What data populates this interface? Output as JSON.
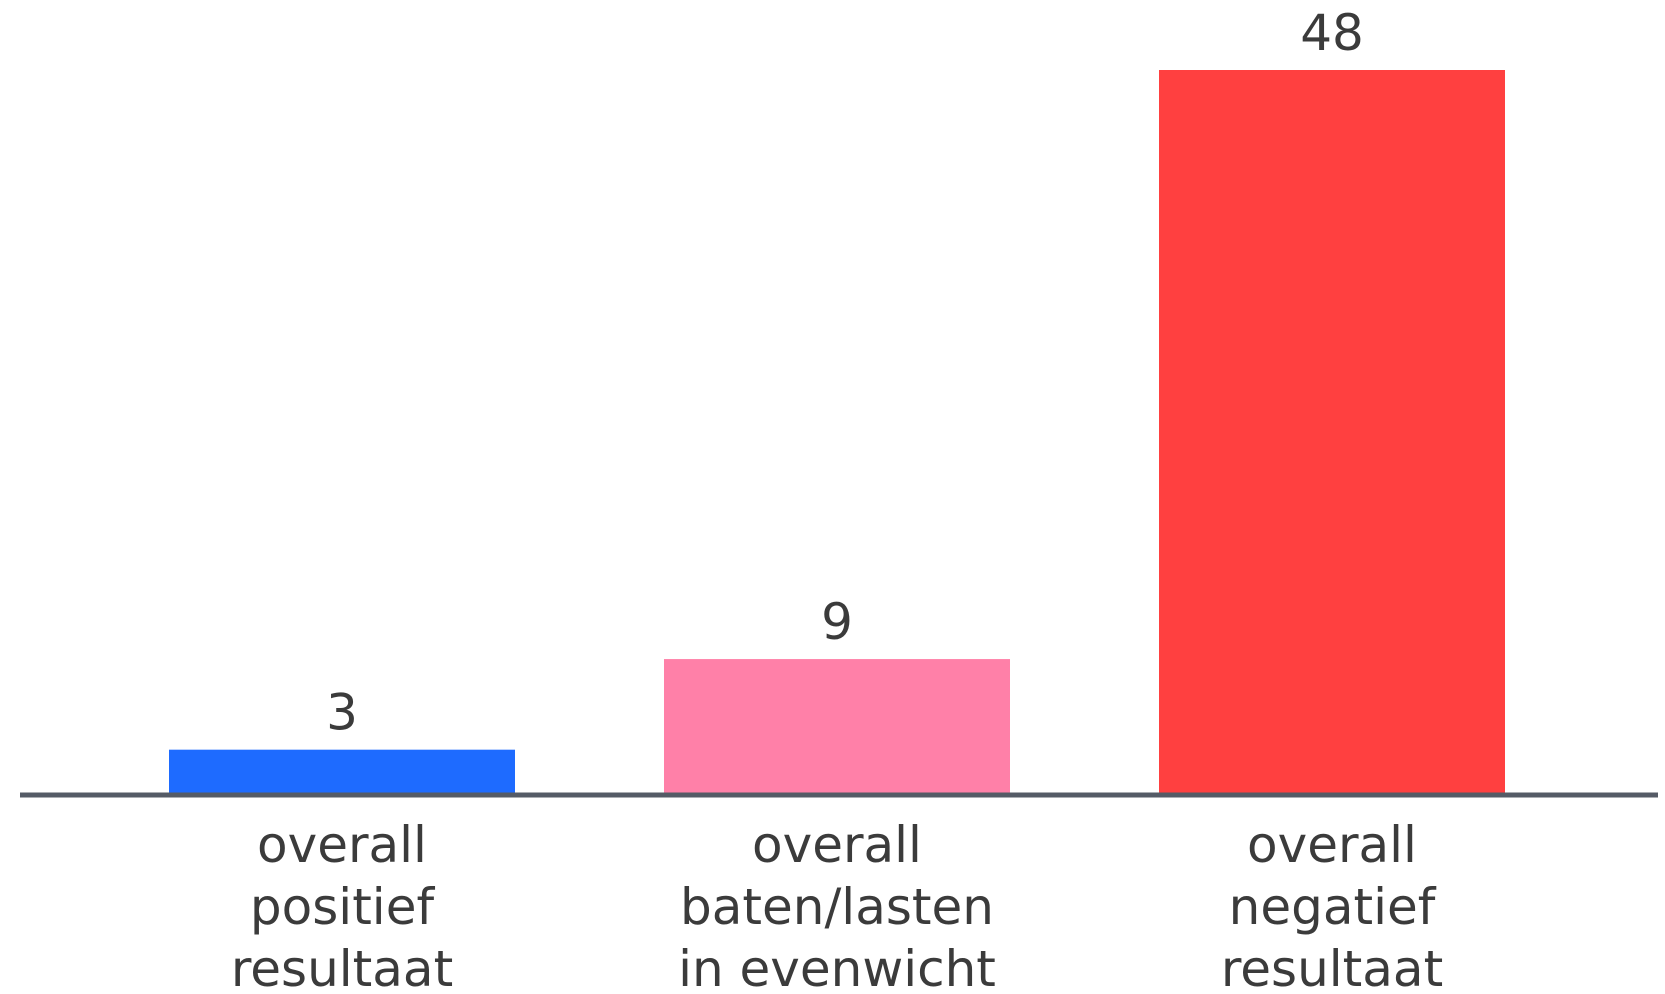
{
  "chart_data": {
    "type": "bar",
    "categories": [
      [
        "overall",
        "positief",
        "resultaat"
      ],
      [
        "overall",
        "baten/lasten",
        "in evenwicht"
      ],
      [
        "overall",
        "negatief",
        "resultaat"
      ]
    ],
    "values": [
      3,
      9,
      48
    ],
    "colors": [
      "#1e6bff",
      "#ff80a8",
      "#ff4040"
    ],
    "axis_color": "#555b66",
    "ylim": [
      0,
      48
    ],
    "grid": false,
    "legend": "none",
    "title": "",
    "xlabel": "",
    "ylabel": ""
  }
}
